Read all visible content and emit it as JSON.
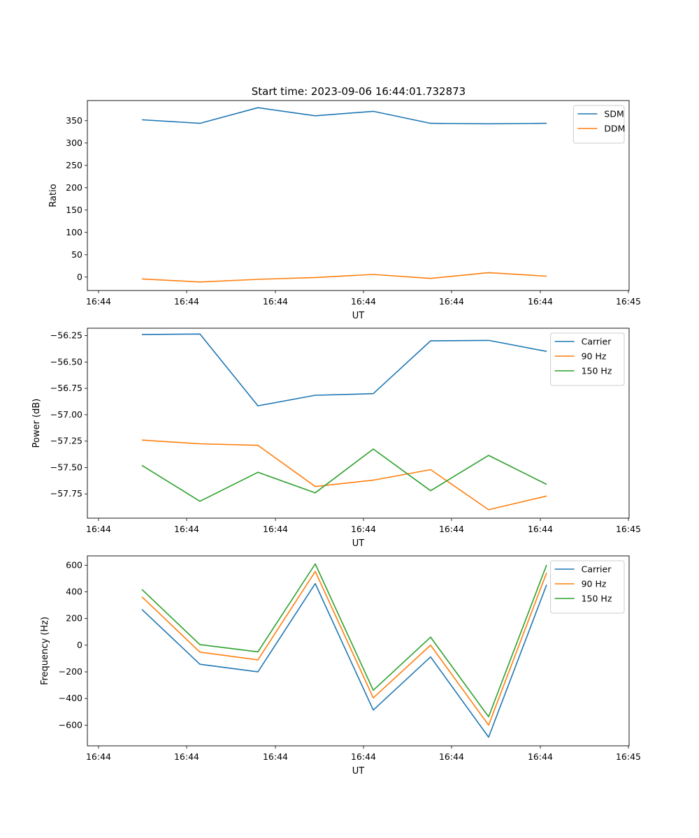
{
  "figure_title": "Start time: 2023-09-06 16:44:01.732873",
  "colors": {
    "blue": "#1f77b4",
    "orange": "#ff7f0e",
    "green": "#2ca02c"
  },
  "chart_data": [
    {
      "type": "line",
      "title": "Start time: 2023-09-06 16:44:01.732873",
      "xlabel": "UT",
      "ylabel": "Ratio",
      "x_ticks": [
        "16:44",
        "16:44",
        "16:44",
        "16:44",
        "16:44",
        "16:44",
        "16:44",
        "16:45"
      ],
      "x_tick_positions": [
        0,
        1,
        2,
        3,
        4,
        5,
        6,
        6
      ],
      "x_tick_values": [
        -0.5,
        0.5,
        1.5,
        2.5,
        3.5,
        4.5,
        5.5,
        6.5
      ],
      "xlim": [
        -0.62,
        5.5
      ],
      "x": [
        0,
        0.655,
        1.31,
        1.965,
        2.62,
        3.275,
        3.93,
        4.585
      ],
      "ylim": [
        -30,
        395
      ],
      "y_ticks": [
        0,
        50,
        100,
        150,
        200,
        250,
        300,
        350
      ],
      "legend": "top-right",
      "series": [
        {
          "name": "SDM",
          "color": "#1f77b4",
          "values": [
            352,
            344,
            379,
            361,
            371,
            344,
            343,
            344
          ]
        },
        {
          "name": "DDM",
          "color": "#ff7f0e",
          "values": [
            -4,
            -11,
            -5,
            -1,
            6,
            -3,
            10,
            2
          ]
        }
      ]
    },
    {
      "type": "line",
      "title": "",
      "xlabel": "UT",
      "ylabel": "Power (dB)",
      "x_ticks": [
        "16:44",
        "16:44",
        "16:44",
        "16:44",
        "16:44",
        "16:44",
        "16:44",
        "16:45"
      ],
      "xlim": [
        -0.62,
        5.5
      ],
      "x": [
        0,
        0.655,
        1.31,
        1.965,
        2.62,
        3.275,
        3.93,
        4.585
      ],
      "ylim": [
        -57.98,
        -56.18
      ],
      "y_ticks": [
        -57.75,
        -57.5,
        -57.25,
        -57.0,
        -56.75,
        -56.5,
        -56.25
      ],
      "y_tick_labels": [
        "−57.75",
        "−57.50",
        "−57.25",
        "−57.00",
        "−56.75",
        "−56.50",
        "−56.25"
      ],
      "legend": "top-right",
      "series": [
        {
          "name": "Carrier",
          "color": "#1f77b4",
          "values": [
            -56.24,
            -56.235,
            -56.915,
            -56.815,
            -56.8,
            -56.3,
            -56.295,
            -56.4
          ]
        },
        {
          "name": "90 Hz",
          "color": "#ff7f0e",
          "values": [
            -57.24,
            -57.275,
            -57.29,
            -57.68,
            -57.62,
            -57.52,
            -57.9,
            -57.77
          ]
        },
        {
          "name": "150 Hz",
          "color": "#2ca02c",
          "values": [
            -57.48,
            -57.82,
            -57.545,
            -57.74,
            -57.325,
            -57.72,
            -57.385,
            -57.66
          ]
        }
      ]
    },
    {
      "type": "line",
      "title": "",
      "xlabel": "UT",
      "ylabel": "Frequency (Hz)",
      "x_ticks": [
        "16:44",
        "16:44",
        "16:44",
        "16:44",
        "16:44",
        "16:44",
        "16:44",
        "16:45"
      ],
      "xlim": [
        -0.62,
        5.5
      ],
      "x": [
        0,
        0.655,
        1.31,
        1.965,
        2.62,
        3.275,
        3.93,
        4.585
      ],
      "ylim": [
        -755,
        670
      ],
      "y_ticks": [
        -600,
        -400,
        -200,
        0,
        200,
        400,
        600
      ],
      "y_tick_labels": [
        "−600",
        "−400",
        "−200",
        "0",
        "200",
        "400",
        "600"
      ],
      "legend": "top-right",
      "series": [
        {
          "name": "Carrier",
          "color": "#1f77b4",
          "values": [
            268,
            -143,
            -200,
            462,
            -487,
            -88,
            -690,
            453
          ]
        },
        {
          "name": "90 Hz",
          "color": "#ff7f0e",
          "values": [
            363,
            -52,
            -110,
            553,
            -395,
            0,
            -600,
            543
          ]
        },
        {
          "name": "150 Hz",
          "color": "#2ca02c",
          "values": [
            418,
            4,
            -50,
            610,
            -338,
            60,
            -537,
            602
          ]
        }
      ]
    }
  ]
}
